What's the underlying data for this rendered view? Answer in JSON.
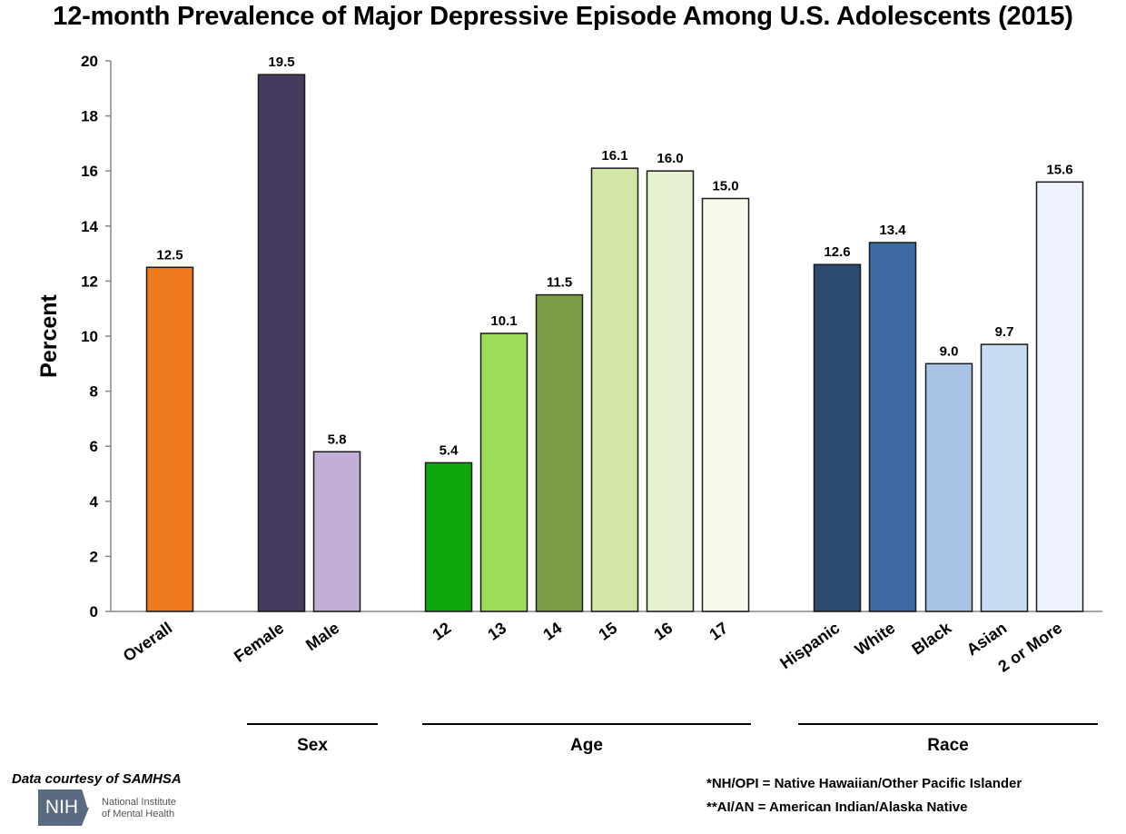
{
  "chart_data": {
    "type": "bar",
    "title": "12-month Prevalence of Major Depressive Episode Among U.S. Adolescents (2015)",
    "ylabel": "Percent",
    "xlabel": "",
    "ylim": [
      0,
      20
    ],
    "yticks": [
      0,
      2,
      4,
      6,
      8,
      10,
      12,
      14,
      16,
      18,
      20
    ],
    "grid": false,
    "categories": [
      "Overall",
      "Female",
      "Male",
      "12",
      "13",
      "14",
      "15",
      "16",
      "17",
      "Hispanic",
      "White",
      "Black",
      "Asian",
      "2 or More"
    ],
    "values": [
      12.5,
      19.5,
      5.8,
      5.4,
      10.1,
      11.5,
      16.1,
      16.0,
      15.0,
      12.6,
      13.4,
      9.0,
      9.7,
      15.6
    ],
    "value_labels": [
      "12.5",
      "19.5",
      "5.8",
      "5.4",
      "10.1",
      "11.5",
      "16.1",
      "16.0",
      "15.0",
      "12.6",
      "13.4",
      "9.0",
      "9.7",
      "15.6"
    ],
    "colors": [
      "#f07a1b",
      "#463a5e",
      "#c3aed6",
      "#0ea80e",
      "#9bdc59",
      "#7b9d44",
      "#d2e6a5",
      "#e6f1cf",
      "#f6faea",
      "#2d4a6f",
      "#3d6aa2",
      "#a8c3e6",
      "#c6dcf2",
      "#eef2fc"
    ],
    "groups": [
      {
        "label": "Sex",
        "categories": [
          "Female",
          "Male"
        ]
      },
      {
        "label": "Age",
        "categories": [
          "12",
          "13",
          "14",
          "15",
          "16",
          "17"
        ]
      },
      {
        "label": "Race",
        "categories": [
          "Hispanic",
          "White",
          "Black",
          "Asian",
          "2 or More"
        ]
      }
    ]
  },
  "footer": {
    "credit": "Data courtesy of SAMHSA",
    "logo_text": "NIH",
    "logo_name_line1": "National Institute",
    "logo_name_line2": "of Mental Health",
    "note1": "*NH/OPI = Native Hawaiian/Other Pacific Islander",
    "note2": "**AI/AN = American Indian/Alaska Native"
  }
}
